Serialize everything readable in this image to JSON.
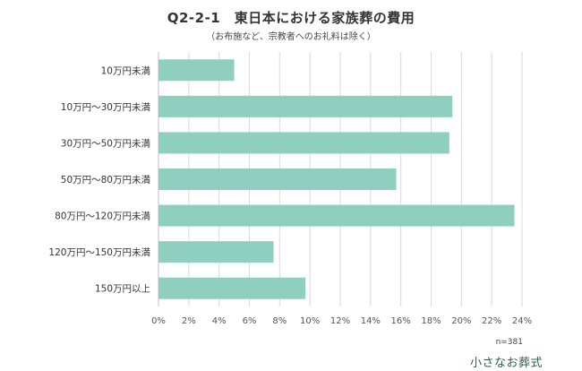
{
  "chart_data": {
    "type": "bar",
    "orientation": "horizontal",
    "title": "Q2-2-1　東日本における家族葬の費用",
    "subtitle": "（お布施など、宗教者へのお礼料は除く）",
    "categories": [
      "10万円未満",
      "10万円～30万円未満",
      "30万円～50万円未満",
      "50万円～80万円未満",
      "80万円～120万円未満",
      "120万円～150万円未満",
      "150万円以上"
    ],
    "values": [
      5.0,
      19.4,
      19.2,
      15.7,
      23.5,
      7.6,
      9.7
    ],
    "xlim": [
      0,
      24
    ],
    "xticks": [
      "0%",
      "2%",
      "4%",
      "6%",
      "8%",
      "10%",
      "12%",
      "14%",
      "16%",
      "18%",
      "20%",
      "22%",
      "24%"
    ],
    "xlabel": "",
    "ylabel": "",
    "grid": true,
    "bar_color": "#8ecfbf",
    "note": "n=381"
  },
  "brand": {
    "name": "小さなお葬式"
  }
}
